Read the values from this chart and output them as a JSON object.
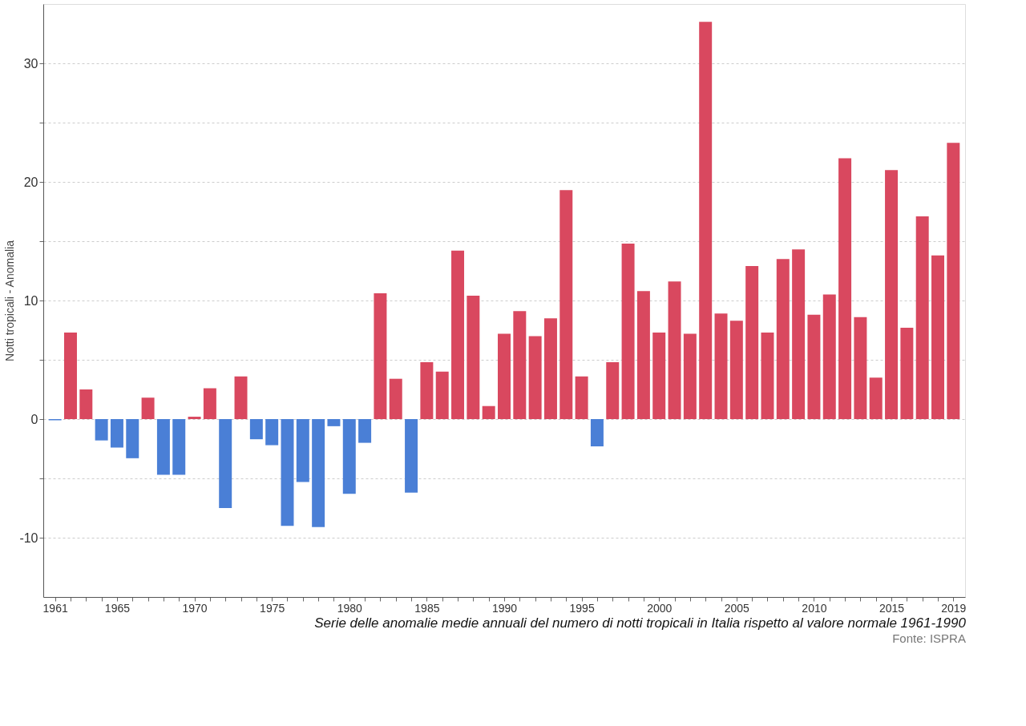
{
  "chart_data": {
    "type": "bar",
    "ylabel": "Notti tropicali - Anomalia",
    "x": [
      1961,
      1962,
      1963,
      1964,
      1965,
      1966,
      1967,
      1968,
      1969,
      1970,
      1971,
      1972,
      1973,
      1974,
      1975,
      1976,
      1977,
      1978,
      1979,
      1980,
      1981,
      1982,
      1983,
      1984,
      1985,
      1986,
      1987,
      1988,
      1989,
      1990,
      1991,
      1992,
      1993,
      1994,
      1995,
      1996,
      1997,
      1998,
      1999,
      2000,
      2001,
      2002,
      2003,
      2004,
      2005,
      2006,
      2007,
      2008,
      2009,
      2010,
      2011,
      2012,
      2013,
      2014,
      2015,
      2016,
      2017,
      2018,
      2019
    ],
    "values": [
      -0.1,
      7.3,
      2.5,
      -1.8,
      -2.4,
      -3.3,
      1.8,
      -4.7,
      -4.7,
      0.2,
      2.6,
      -7.5,
      3.6,
      -1.7,
      -2.2,
      -9.0,
      -5.3,
      -9.1,
      -0.6,
      -6.3,
      -2.0,
      10.6,
      3.4,
      -6.2,
      4.8,
      4.0,
      14.2,
      10.4,
      1.1,
      7.2,
      9.1,
      7.0,
      8.5,
      19.3,
      3.6,
      -2.3,
      4.8,
      14.8,
      10.8,
      7.3,
      11.6,
      7.2,
      33.5,
      8.9,
      8.3,
      12.9,
      7.3,
      13.5,
      14.3,
      8.8,
      10.5,
      22.0,
      8.6,
      3.5,
      21.0,
      7.7,
      17.1,
      13.8,
      23.3
    ],
    "colors": [
      "#4a7fd6",
      "#d9485f",
      "#d9485f",
      "#4a7fd6",
      "#4a7fd6",
      "#4a7fd6",
      "#d9485f",
      "#4a7fd6",
      "#4a7fd6",
      "#d9485f",
      "#d9485f",
      "#4a7fd6",
      "#d9485f",
      "#4a7fd6",
      "#4a7fd6",
      "#4a7fd6",
      "#4a7fd6",
      "#4a7fd6",
      "#4a7fd6",
      "#4a7fd6",
      "#4a7fd6",
      "#d9485f",
      "#d9485f",
      "#4a7fd6",
      "#d9485f",
      "#d9485f",
      "#d9485f",
      "#d9485f",
      "#d9485f",
      "#d9485f",
      "#d9485f",
      "#d9485f",
      "#d9485f",
      "#d9485f",
      "#d9485f",
      "#4a7fd6",
      "#d9485f",
      "#d9485f",
      "#d9485f",
      "#d9485f",
      "#d9485f",
      "#d9485f",
      "#d9485f",
      "#d9485f",
      "#d9485f",
      "#d9485f",
      "#d9485f",
      "#d9485f",
      "#d9485f",
      "#d9485f",
      "#d9485f",
      "#d9485f",
      "#d9485f",
      "#d9485f",
      "#d9485f",
      "#d9485f",
      "#d9485f",
      "#d9485f",
      "#d9485f"
    ],
    "xlim": [
      1960.5,
      2019.5
    ],
    "xticks": [
      1961,
      {
        "value": 1962,
        "label": null
      },
      {
        "value": 1963,
        "label": null
      },
      {
        "value": 1964,
        "label": null
      },
      1965,
      {
        "value": 1966,
        "label": null
      },
      {
        "value": 1967,
        "label": null
      },
      {
        "value": 1968,
        "label": null
      },
      {
        "value": 1969,
        "label": null
      },
      1970,
      {
        "value": 1971,
        "label": null
      },
      {
        "value": 1972,
        "label": null
      },
      {
        "value": 1973,
        "label": null
      },
      {
        "value": 1974,
        "label": null
      },
      1975,
      {
        "value": 1976,
        "label": null
      },
      {
        "value": 1977,
        "label": null
      },
      {
        "value": 1978,
        "label": null
      },
      {
        "value": 1979,
        "label": null
      },
      1980,
      {
        "value": 1981,
        "label": null
      },
      {
        "value": 1982,
        "label": null
      },
      {
        "value": 1983,
        "label": null
      },
      {
        "value": 1984,
        "label": null
      },
      1985,
      {
        "value": 1986,
        "label": null
      },
      {
        "value": 1987,
        "label": null
      },
      {
        "value": 1988,
        "label": null
      },
      {
        "value": 1989,
        "label": null
      },
      1990,
      {
        "value": 1991,
        "label": null
      },
      {
        "value": 1992,
        "label": null
      },
      {
        "value": 1993,
        "label": null
      },
      {
        "value": 1994,
        "label": null
      },
      1995,
      {
        "value": 1996,
        "label": null
      },
      {
        "value": 1997,
        "label": null
      },
      {
        "value": 1998,
        "label": null
      },
      {
        "value": 1999,
        "label": null
      },
      2000,
      {
        "value": 2001,
        "label": null
      },
      {
        "value": 2002,
        "label": null
      },
      {
        "value": 2003,
        "label": null
      },
      {
        "value": 2004,
        "label": null
      },
      2005,
      {
        "value": 2006,
        "label": null
      },
      {
        "value": 2007,
        "label": null
      },
      {
        "value": 2008,
        "label": null
      },
      {
        "value": 2009,
        "label": null
      },
      2010,
      {
        "value": 2011,
        "label": null
      },
      {
        "value": 2012,
        "label": null
      },
      {
        "value": 2013,
        "label": null
      },
      {
        "value": 2014,
        "label": null
      },
      2015,
      {
        "value": 2016,
        "label": null
      },
      {
        "value": 2017,
        "label": null
      },
      {
        "value": 2018,
        "label": null
      },
      2019
    ],
    "ylim": [
      -15,
      35
    ],
    "yticks": [
      -10,
      {
        "value": -5,
        "label": null
      },
      0,
      {
        "value": 5,
        "label": null
      },
      10,
      {
        "value": 15,
        "label": null
      },
      20,
      {
        "value": 25,
        "label": null
      },
      30
    ],
    "grid": "y",
    "annotations": [
      "Serie delle anomalie medie annuali del numero di notti tropicali in Italia rispetto al valore normale 1961-1990",
      "Fonte: ISPRA"
    ]
  }
}
